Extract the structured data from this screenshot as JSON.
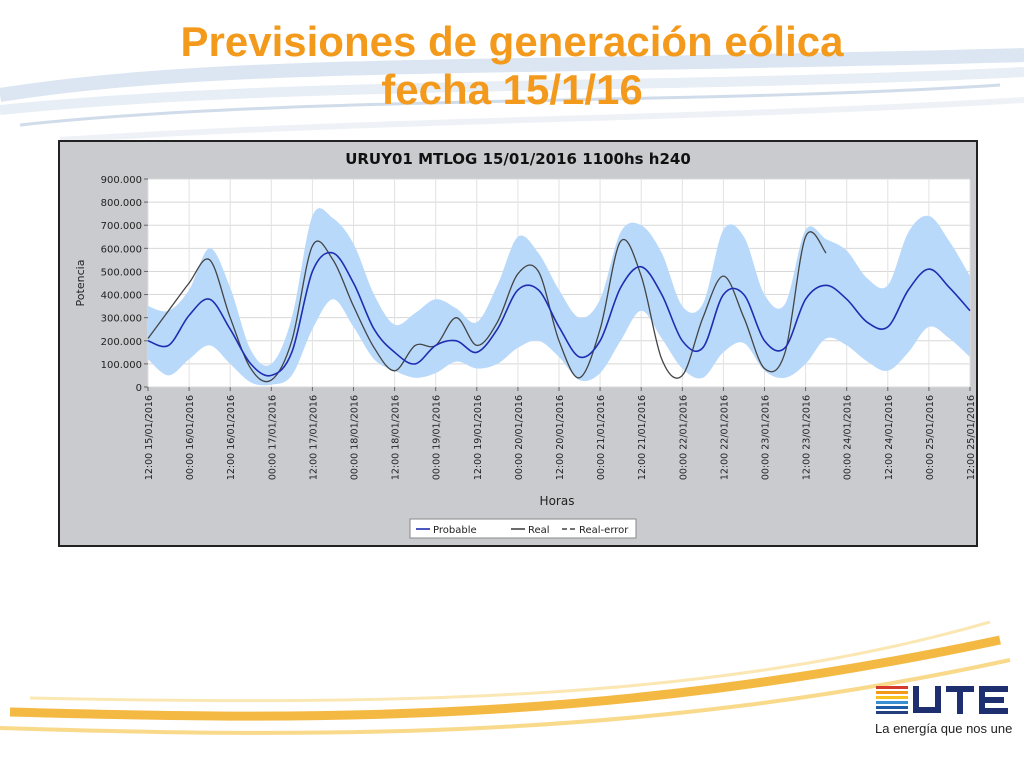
{
  "slide": {
    "title_line1": "Previsiones de generación eólica",
    "title_line2": "fecha 15/1/16",
    "brand_tagline": "La energía que nos une",
    "brand_name": "UTE",
    "title_color": "#f39a1c"
  },
  "chart_data": {
    "type": "line",
    "title": "URUY01  MTLOG  15/01/2016  1100hs  h240",
    "xlabel": "Horas",
    "ylabel": "Potencia",
    "ylim": [
      0,
      900000
    ],
    "yticks": [
      "0",
      "100.000",
      "200.000",
      "300.000",
      "400.000",
      "500.000",
      "600.000",
      "700.000",
      "800.000",
      "900.000"
    ],
    "xticks": [
      "12:00 15/01/2016",
      "00:00 16/01/2016",
      "12:00 16/01/2016",
      "00:00 17/01/2016",
      "12:00 17/01/2016",
      "00:00 18/01/2016",
      "12:00 18/01/2016",
      "00:00 19/01/2016",
      "12:00 19/01/2016",
      "00:00 20/01/2016",
      "12:00 20/01/2016",
      "00:00 21/01/2016",
      "12:00 21/01/2016",
      "00:00 22/01/2016",
      "12:00 22/01/2016",
      "00:00 23/01/2016",
      "12:00 23/01/2016",
      "00:00 24/01/2016",
      "12:00 24/01/2016",
      "00:00 25/01/2016",
      "12:00 25/01/2016"
    ],
    "x_hours": [
      0,
      6,
      12,
      18,
      24,
      30,
      36,
      42,
      48,
      54,
      60,
      66,
      72,
      78,
      84,
      90,
      96,
      102,
      108,
      114,
      120,
      126,
      132,
      138,
      144,
      150,
      156,
      162,
      168,
      174,
      180,
      186,
      192,
      198,
      204,
      210,
      216,
      222,
      228,
      234,
      240
    ],
    "legend": [
      "Probable",
      "Real",
      "Real-error"
    ],
    "legend_position": "bottom",
    "grid": true,
    "colors": {
      "probable": "#1f2db0",
      "real": "#444444",
      "band": "#b9d9fb",
      "plot_bg": "#ffffff"
    },
    "series": [
      {
        "name": "Probable",
        "values": [
          200000,
          180000,
          310000,
          380000,
          250000,
          100000,
          50000,
          150000,
          500000,
          580000,
          450000,
          250000,
          150000,
          100000,
          180000,
          200000,
          150000,
          250000,
          420000,
          420000,
          260000,
          130000,
          200000,
          430000,
          520000,
          400000,
          200000,
          170000,
          400000,
          400000,
          200000,
          170000,
          380000,
          440000,
          380000,
          280000,
          260000,
          420000,
          510000,
          430000,
          330000
        ]
      },
      {
        "name": "Real",
        "values": [
          210000,
          330000,
          450000,
          550000,
          300000,
          80000,
          30000,
          200000,
          610000,
          550000,
          350000,
          170000,
          70000,
          180000,
          180000,
          300000,
          180000,
          280000,
          490000,
          500000,
          200000,
          40000,
          250000,
          630000,
          480000,
          120000,
          50000,
          300000,
          480000,
          300000,
          80000,
          150000,
          650000,
          580000
        ]
      }
    ],
    "band_upper": [
      350000,
      330000,
      420000,
      600000,
      430000,
      160000,
      100000,
      300000,
      740000,
      730000,
      620000,
      400000,
      270000,
      320000,
      380000,
      340000,
      280000,
      440000,
      650000,
      580000,
      420000,
      300000,
      380000,
      670000,
      700000,
      580000,
      350000,
      360000,
      680000,
      650000,
      400000,
      360000,
      680000,
      640000,
      590000,
      470000,
      440000,
      670000,
      740000,
      630000,
      480000
    ],
    "band_lower": [
      120000,
      50000,
      120000,
      180000,
      100000,
      20000,
      10000,
      50000,
      250000,
      380000,
      260000,
      120000,
      70000,
      40000,
      60000,
      110000,
      80000,
      100000,
      170000,
      200000,
      130000,
      30000,
      60000,
      200000,
      330000,
      210000,
      80000,
      40000,
      150000,
      190000,
      70000,
      40000,
      100000,
      210000,
      180000,
      110000,
      70000,
      150000,
      260000,
      210000,
      130000
    ]
  }
}
